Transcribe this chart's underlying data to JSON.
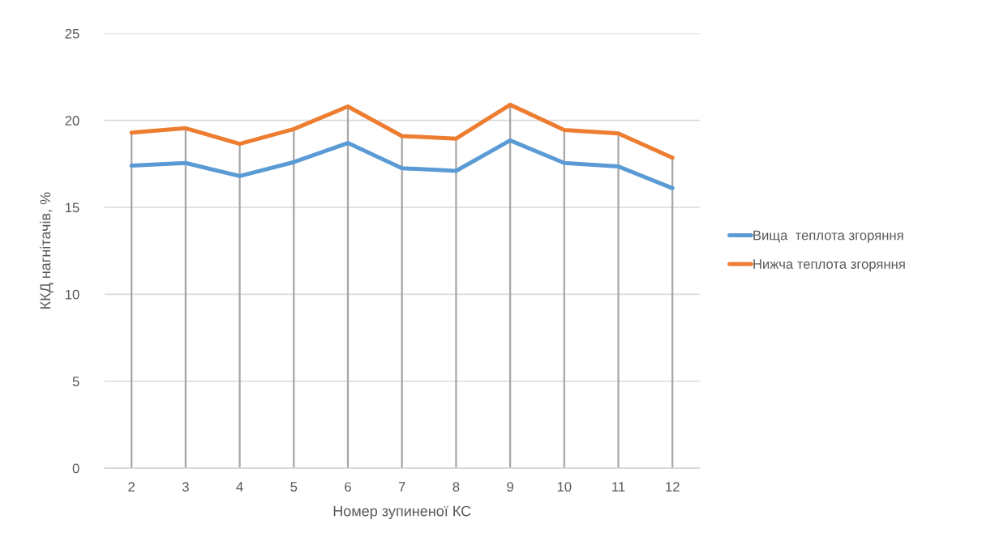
{
  "chart_data": {
    "type": "line",
    "xlabel": "Номер зупиненої КС",
    "ylabel": "ККД нагнітачів, %",
    "categories": [
      "2",
      "3",
      "4",
      "5",
      "6",
      "7",
      "8",
      "9",
      "10",
      "11",
      "12"
    ],
    "series": [
      {
        "name": "Вища  теплота згоряння",
        "color": "#5b9bd5",
        "values": [
          17.4,
          17.55,
          16.8,
          17.6,
          18.7,
          17.25,
          17.1,
          18.85,
          17.55,
          17.35,
          16.1
        ]
      },
      {
        "name": "Нижча теплота згоряння",
        "color": "#ed7d31",
        "values": [
          19.3,
          19.55,
          18.65,
          19.5,
          20.8,
          19.1,
          18.95,
          20.9,
          19.45,
          19.25,
          17.85
        ]
      }
    ],
    "ylim": [
      0,
      25
    ],
    "yticks": [
      0,
      5,
      10,
      15,
      20,
      25
    ],
    "grid": true,
    "legend": "right",
    "marker": "none",
    "line_style": "solid"
  }
}
